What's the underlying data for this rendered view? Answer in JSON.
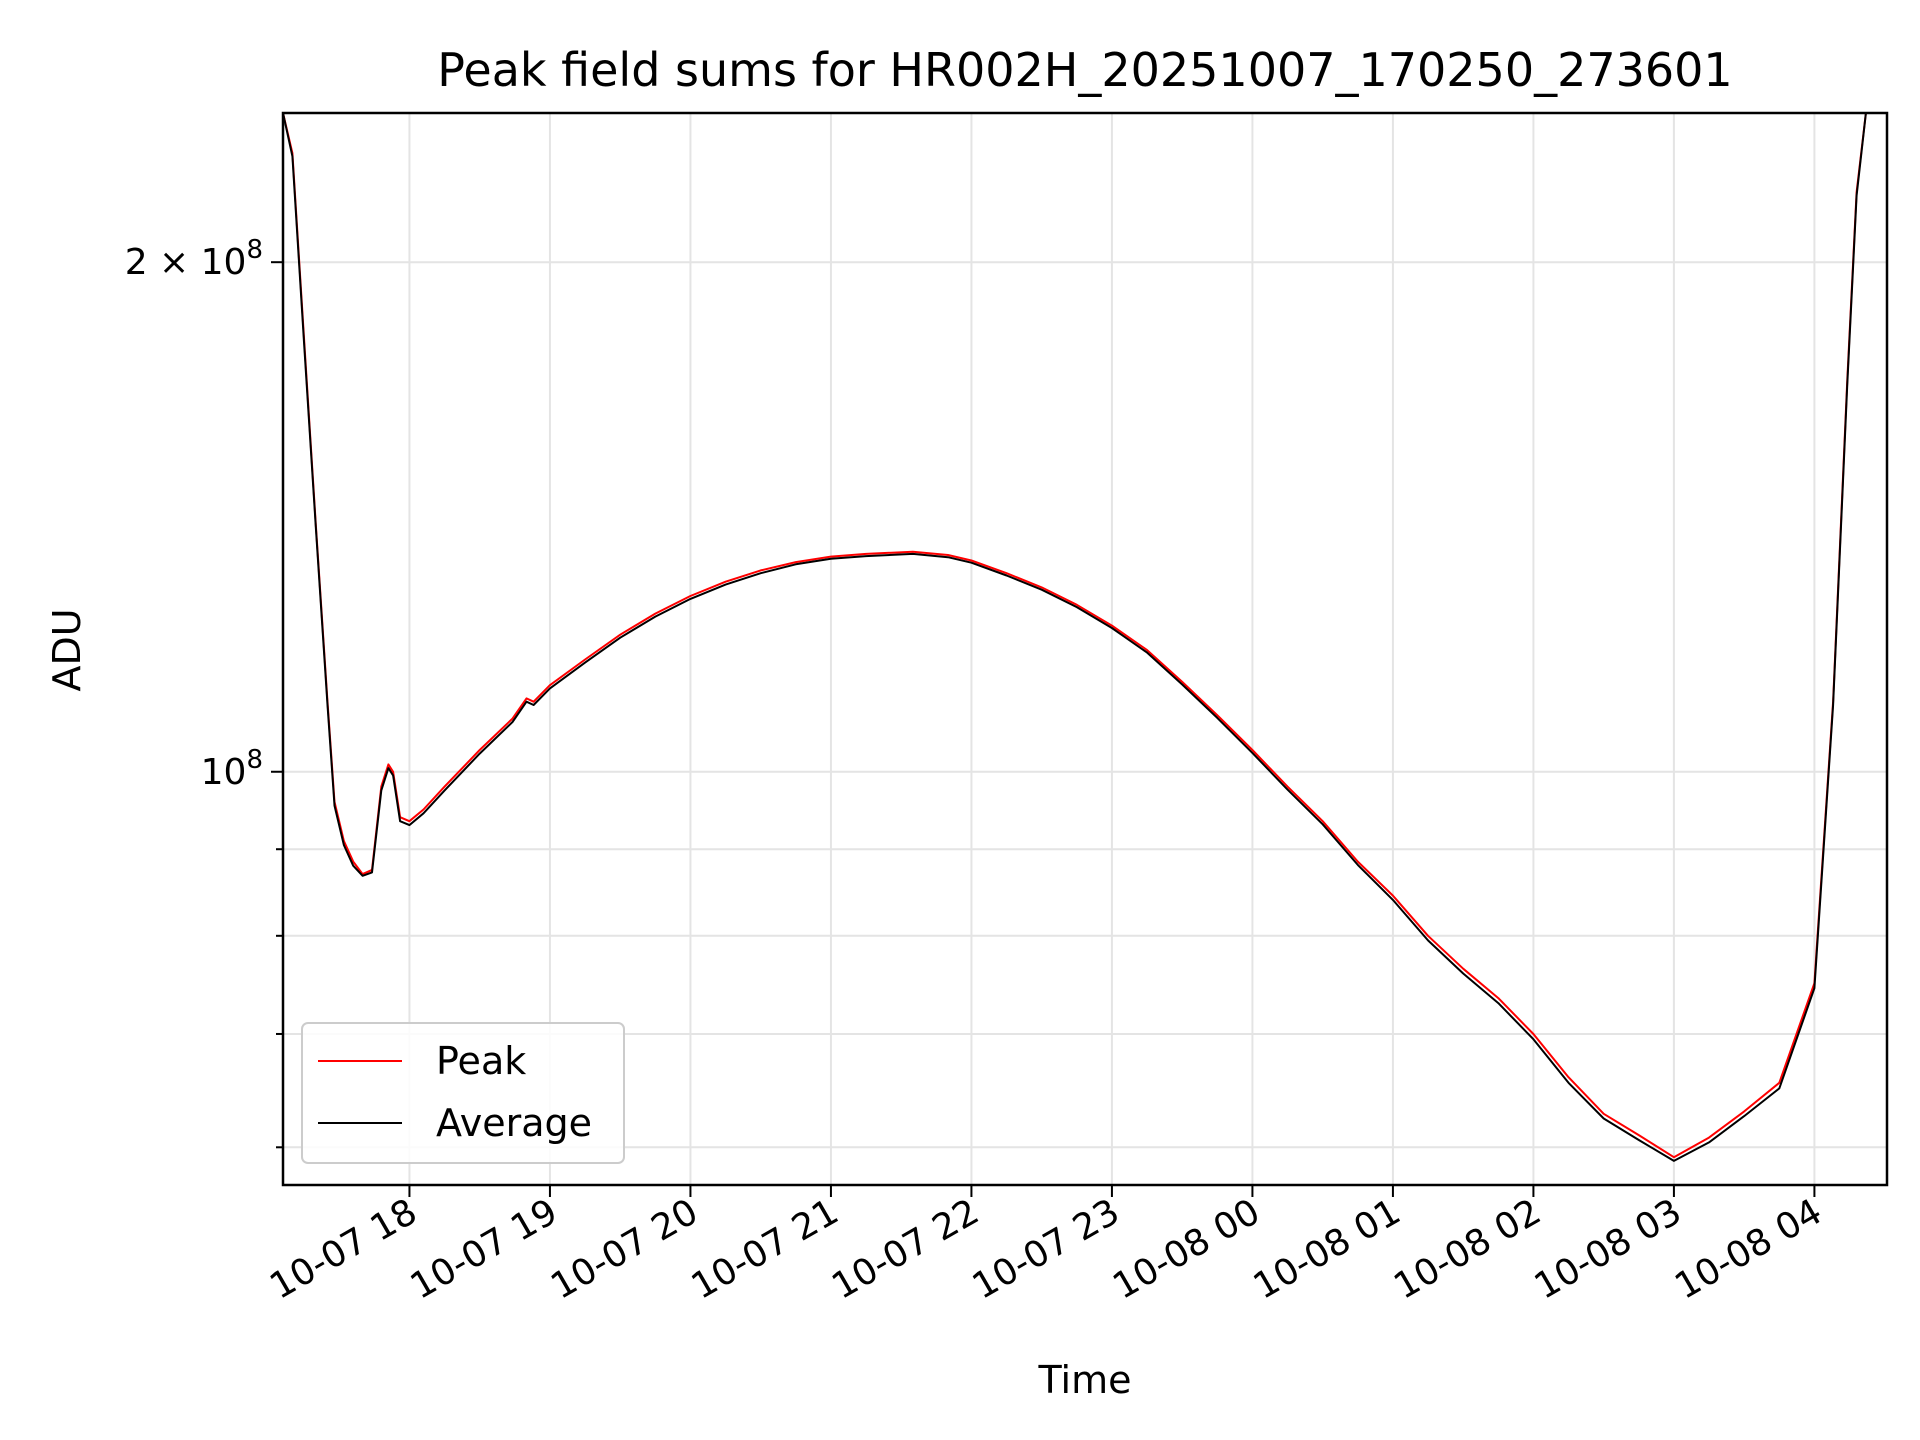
{
  "chart_data": {
    "type": "line",
    "title": "Peak field sums for HR002H_20251007_170250_273601",
    "xlabel": "Time",
    "ylabel": "ADU",
    "y_scale": "log",
    "x_axis": "datetime",
    "grid": true,
    "legend_position": "lower-left",
    "xlim": [
      "2025-10-07T17:06",
      "2025-10-08T04:31"
    ],
    "ylim": [
      57000000,
      245000000
    ],
    "x_ticks": [
      {
        "value": "2025-10-07T18:00",
        "label": "10-07 18"
      },
      {
        "value": "2025-10-07T19:00",
        "label": "10-07 19"
      },
      {
        "value": "2025-10-07T20:00",
        "label": "10-07 20"
      },
      {
        "value": "2025-10-07T21:00",
        "label": "10-07 21"
      },
      {
        "value": "2025-10-07T22:00",
        "label": "10-07 22"
      },
      {
        "value": "2025-10-07T23:00",
        "label": "10-07 23"
      },
      {
        "value": "2025-10-08T00:00",
        "label": "10-08 00"
      },
      {
        "value": "2025-10-08T01:00",
        "label": "10-08 01"
      },
      {
        "value": "2025-10-08T02:00",
        "label": "10-08 02"
      },
      {
        "value": "2025-10-08T03:00",
        "label": "10-08 03"
      },
      {
        "value": "2025-10-08T04:00",
        "label": "10-08 04"
      }
    ],
    "y_major_ticks": [
      {
        "value": 100000000,
        "base": "10",
        "exp": "8",
        "prefix": ""
      },
      {
        "value": 200000000,
        "base": "10",
        "exp": "8",
        "prefix": "2 × "
      }
    ],
    "y_minor_ticks": [
      60000000,
      70000000,
      80000000,
      90000000
    ],
    "series": [
      {
        "name": "Peak",
        "color": "#ff0000",
        "points": [
          [
            "2025-10-07T17:06",
            245000000
          ],
          [
            "2025-10-07T17:10",
            232000000
          ],
          [
            "2025-10-07T17:15",
            180000000
          ],
          [
            "2025-10-07T17:20",
            140000000
          ],
          [
            "2025-10-07T17:25",
            110000000
          ],
          [
            "2025-10-07T17:28",
            96000000
          ],
          [
            "2025-10-07T17:32",
            91000000
          ],
          [
            "2025-10-07T17:36",
            88500000
          ],
          [
            "2025-10-07T17:40",
            87000000
          ],
          [
            "2025-10-07T17:44",
            87500000
          ],
          [
            "2025-10-07T17:48",
            98000000
          ],
          [
            "2025-10-07T17:51",
            101000000
          ],
          [
            "2025-10-07T17:53",
            100000000
          ],
          [
            "2025-10-07T17:56",
            94000000
          ],
          [
            "2025-10-07T18:00",
            93500000
          ],
          [
            "2025-10-07T18:06",
            95000000
          ],
          [
            "2025-10-07T18:15",
            98000000
          ],
          [
            "2025-10-07T18:30",
            103000000
          ],
          [
            "2025-10-07T18:44",
            107500000
          ],
          [
            "2025-10-07T18:50",
            110500000
          ],
          [
            "2025-10-07T18:53",
            110000000
          ],
          [
            "2025-10-07T19:00",
            112500000
          ],
          [
            "2025-10-07T19:15",
            116500000
          ],
          [
            "2025-10-07T19:30",
            120500000
          ],
          [
            "2025-10-07T19:45",
            124000000
          ],
          [
            "2025-10-07T20:00",
            127000000
          ],
          [
            "2025-10-07T20:15",
            129500000
          ],
          [
            "2025-10-07T20:30",
            131500000
          ],
          [
            "2025-10-07T20:45",
            133000000
          ],
          [
            "2025-10-07T21:00",
            134000000
          ],
          [
            "2025-10-07T21:15",
            134500000
          ],
          [
            "2025-10-07T21:35",
            134900000
          ],
          [
            "2025-10-07T21:50",
            134300000
          ],
          [
            "2025-10-07T22:00",
            133300000
          ],
          [
            "2025-10-07T22:15",
            131000000
          ],
          [
            "2025-10-07T22:30",
            128500000
          ],
          [
            "2025-10-07T22:45",
            125500000
          ],
          [
            "2025-10-07T23:00",
            122000000
          ],
          [
            "2025-10-07T23:15",
            118000000
          ],
          [
            "2025-10-07T23:30",
            113000000
          ],
          [
            "2025-10-07T23:45",
            108000000
          ],
          [
            "2025-10-08T00:00",
            103000000
          ],
          [
            "2025-10-08T00:15",
            98000000
          ],
          [
            "2025-10-08T00:30",
            93500000
          ],
          [
            "2025-10-08T00:45",
            88500000
          ],
          [
            "2025-10-08T01:00",
            84500000
          ],
          [
            "2025-10-08T01:15",
            80000000
          ],
          [
            "2025-10-08T01:30",
            76500000
          ],
          [
            "2025-10-08T01:45",
            73500000
          ],
          [
            "2025-10-08T02:00",
            70000000
          ],
          [
            "2025-10-08T02:15",
            66000000
          ],
          [
            "2025-10-08T02:30",
            62800000
          ],
          [
            "2025-10-08T02:45",
            61000000
          ],
          [
            "2025-10-08T03:00",
            59200000
          ],
          [
            "2025-10-08T03:15",
            60800000
          ],
          [
            "2025-10-08T03:30",
            63000000
          ],
          [
            "2025-10-08T03:45",
            65500000
          ],
          [
            "2025-10-08T04:00",
            75000000
          ],
          [
            "2025-10-08T04:08",
            110000000
          ],
          [
            "2025-10-08T04:14",
            170000000
          ],
          [
            "2025-10-08T04:18",
            220000000
          ],
          [
            "2025-10-08T04:22",
            245000000
          ],
          [
            "2025-10-08T04:31",
            245000000
          ]
        ]
      },
      {
        "name": "Average",
        "color": "#000000",
        "points": [
          [
            "2025-10-07T17:06",
            245000000
          ],
          [
            "2025-10-07T17:10",
            231000000
          ],
          [
            "2025-10-07T17:15",
            179000000
          ],
          [
            "2025-10-07T17:20",
            139500000
          ],
          [
            "2025-10-07T17:25",
            109500000
          ],
          [
            "2025-10-07T17:28",
            95500000
          ],
          [
            "2025-10-07T17:32",
            90500000
          ],
          [
            "2025-10-07T17:36",
            88000000
          ],
          [
            "2025-10-07T17:40",
            86800000
          ],
          [
            "2025-10-07T17:44",
            87200000
          ],
          [
            "2025-10-07T17:48",
            97500000
          ],
          [
            "2025-10-07T17:51",
            100500000
          ],
          [
            "2025-10-07T17:53",
            99500000
          ],
          [
            "2025-10-07T17:56",
            93500000
          ],
          [
            "2025-10-07T18:00",
            93000000
          ],
          [
            "2025-10-07T18:06",
            94500000
          ],
          [
            "2025-10-07T18:15",
            97500000
          ],
          [
            "2025-10-07T18:30",
            102500000
          ],
          [
            "2025-10-07T18:44",
            107000000
          ],
          [
            "2025-10-07T18:50",
            110000000
          ],
          [
            "2025-10-07T18:53",
            109500000
          ],
          [
            "2025-10-07T19:00",
            112000000
          ],
          [
            "2025-10-07T19:15",
            116000000
          ],
          [
            "2025-10-07T19:30",
            120000000
          ],
          [
            "2025-10-07T19:45",
            123500000
          ],
          [
            "2025-10-07T20:00",
            126500000
          ],
          [
            "2025-10-07T20:15",
            129000000
          ],
          [
            "2025-10-07T20:30",
            131000000
          ],
          [
            "2025-10-07T20:45",
            132600000
          ],
          [
            "2025-10-07T21:00",
            133600000
          ],
          [
            "2025-10-07T21:15",
            134100000
          ],
          [
            "2025-10-07T21:35",
            134500000
          ],
          [
            "2025-10-07T21:50",
            133900000
          ],
          [
            "2025-10-07T22:00",
            132900000
          ],
          [
            "2025-10-07T22:15",
            130600000
          ],
          [
            "2025-10-07T22:30",
            128100000
          ],
          [
            "2025-10-07T22:45",
            125100000
          ],
          [
            "2025-10-07T23:00",
            121600000
          ],
          [
            "2025-10-07T23:15",
            117600000
          ],
          [
            "2025-10-07T23:30",
            112600000
          ],
          [
            "2025-10-07T23:45",
            107600000
          ],
          [
            "2025-10-08T00:00",
            102600000
          ],
          [
            "2025-10-08T00:15",
            97600000
          ],
          [
            "2025-10-08T00:30",
            93100000
          ],
          [
            "2025-10-08T00:45",
            88100000
          ],
          [
            "2025-10-08T01:00",
            84000000
          ],
          [
            "2025-10-08T01:15",
            79500000
          ],
          [
            "2025-10-08T01:30",
            76000000
          ],
          [
            "2025-10-08T01:45",
            73000000
          ],
          [
            "2025-10-08T02:00",
            69500000
          ],
          [
            "2025-10-08T02:15",
            65500000
          ],
          [
            "2025-10-08T02:30",
            62400000
          ],
          [
            "2025-10-08T02:45",
            60600000
          ],
          [
            "2025-10-08T03:00",
            58900000
          ],
          [
            "2025-10-08T03:15",
            60400000
          ],
          [
            "2025-10-08T03:30",
            62600000
          ],
          [
            "2025-10-08T03:45",
            65000000
          ],
          [
            "2025-10-08T04:00",
            74500000
          ],
          [
            "2025-10-08T04:08",
            109500000
          ],
          [
            "2025-10-08T04:14",
            169000000
          ],
          [
            "2025-10-08T04:18",
            219000000
          ],
          [
            "2025-10-08T04:22",
            245000000
          ],
          [
            "2025-10-08T04:31",
            245000000
          ]
        ]
      }
    ]
  }
}
